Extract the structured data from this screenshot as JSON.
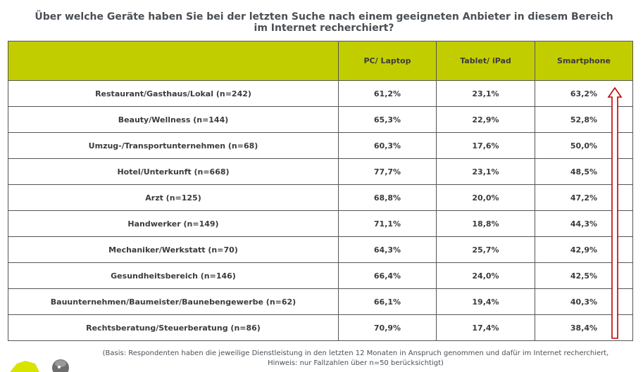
{
  "title": "Über welche Geräte haben Sie bei der letzten Suche nach einem geeigneten Anbieter in diesem Bereich im Internet recherchiert?",
  "note_line1": "(Basis: Respondenten haben die jeweilige Dienstleistung in den letzten 12 Monaten in Anspruch genommen und dafür im Internet recherchiert,",
  "note_line2": "Hinweis: nur Fallzahlen über n=50 berücksichtigt)",
  "colors": {
    "header_bg": "#c2cd00",
    "arrow": "#c00000",
    "border": "#555555"
  },
  "chart_data": {
    "type": "table",
    "columns": [
      "",
      "PC/ Laptop",
      "Tablet/ iPad",
      "Smartphone"
    ],
    "rows": [
      [
        "Restaurant/Gasthaus/Lokal (n=242)",
        "61,2%",
        "23,1%",
        "63,2%"
      ],
      [
        "Beauty/Wellness (n=144)",
        "65,3%",
        "22,9%",
        "52,8%"
      ],
      [
        "Umzug-/Transportunternehmen (n=68)",
        "60,3%",
        "17,6%",
        "50,0%"
      ],
      [
        "Hotel/Unterkunft (n=668)",
        "77,7%",
        "23,1%",
        "48,5%"
      ],
      [
        "Arzt (n=125)",
        "68,8%",
        "20,0%",
        "47,2%"
      ],
      [
        "Handwerker (n=149)",
        "71,1%",
        "18,8%",
        "44,3%"
      ],
      [
        "Mechaniker/Werkstatt (n=70)",
        "64,3%",
        "25,7%",
        "42,9%"
      ],
      [
        "Gesundheitsbereich (n=146)",
        "66,4%",
        "24,0%",
        "42,5%"
      ],
      [
        "Bauunternehmen/Baumeister/Baunebengewerbe (n=62)",
        "66,1%",
        "19,4%",
        "40,3%"
      ],
      [
        "Rechtsberatung/Steuerberatung (n=86)",
        "70,9%",
        "17,4%",
        "38,4%"
      ]
    ]
  }
}
